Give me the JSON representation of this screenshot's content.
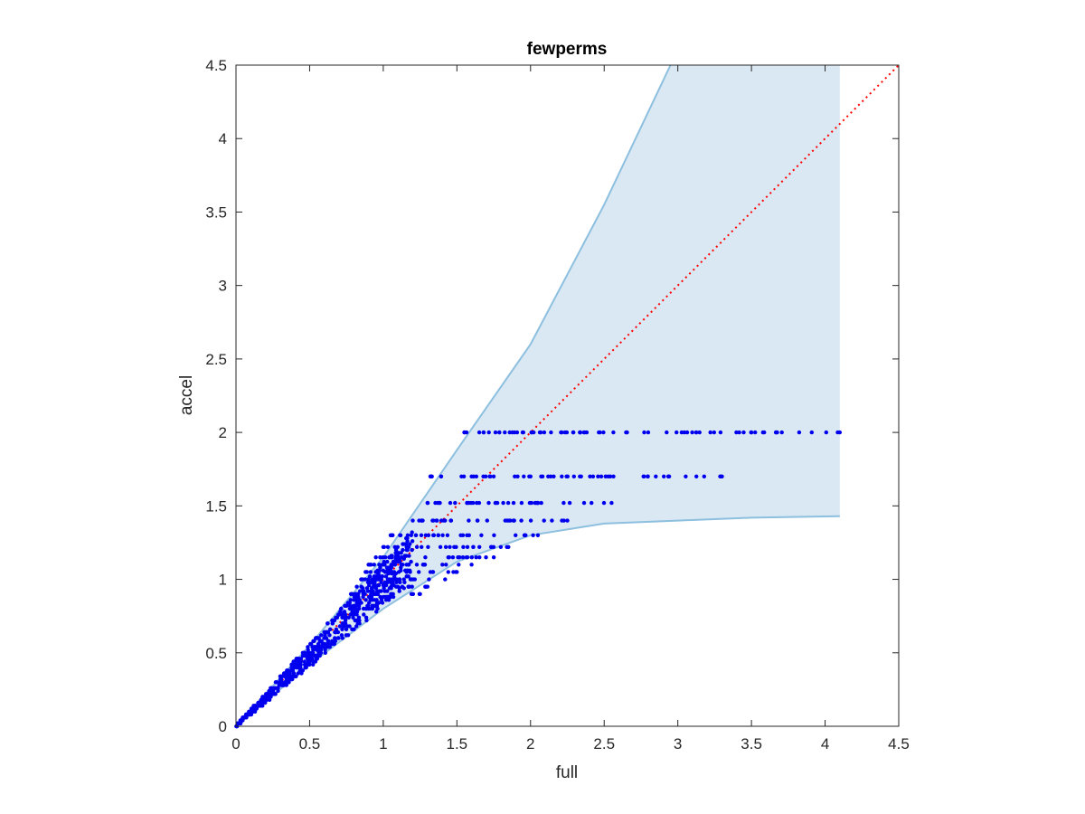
{
  "chart_data": {
    "type": "scatter",
    "title": "fewperms",
    "xlabel": "full",
    "ylabel": "accel",
    "xlim": [
      0,
      4.5
    ],
    "ylim": [
      0,
      4.5
    ],
    "xticks": [
      "0",
      "0.5",
      "1",
      "1.5",
      "2",
      "2.5",
      "3",
      "3.5",
      "4",
      "4.5"
    ],
    "yticks": [
      "0",
      "0.5",
      "1",
      "1.5",
      "2",
      "2.5",
      "3",
      "3.5",
      "4",
      "4.5"
    ],
    "grid": false,
    "colors": {
      "points": "#0000ee",
      "band_fill": "#d9e8f3",
      "band_edge": "#8dbfdf",
      "reference_line": "#ff0000",
      "axes": "#262626"
    },
    "reference_line": {
      "type": "y=x",
      "style": "dotted"
    },
    "band": {
      "upper": [
        [
          0,
          0
        ],
        [
          0.5,
          0.55
        ],
        [
          1,
          1.15
        ],
        [
          1.5,
          1.88
        ],
        [
          2,
          2.6
        ],
        [
          2.5,
          3.55
        ],
        [
          2.95,
          4.5
        ],
        [
          4.1,
          4.5
        ]
      ],
      "lower": [
        [
          0,
          0
        ],
        [
          0.5,
          0.42
        ],
        [
          1,
          0.8
        ],
        [
          1.5,
          1.12
        ],
        [
          2,
          1.3
        ],
        [
          2.5,
          1.38
        ],
        [
          3,
          1.4
        ],
        [
          3.5,
          1.42
        ],
        [
          4.1,
          1.43
        ]
      ]
    },
    "series": [
      {
        "levels": [
          {
            "y": 2.0,
            "x_min": 1.55,
            "x_max": 4.1
          },
          {
            "y": 1.7,
            "x_min": 1.32,
            "x_max": 3.3
          },
          {
            "y": 1.52,
            "x_min": 1.3,
            "x_max": 2.55
          },
          {
            "y": 1.4,
            "x_min": 1.2,
            "x_max": 2.25
          },
          {
            "y": 1.3,
            "x_min": 1.05,
            "x_max": 2.05
          },
          {
            "y": 1.22,
            "x_min": 1.0,
            "x_max": 1.85
          },
          {
            "y": 1.15,
            "x_min": 0.95,
            "x_max": 1.75
          },
          {
            "y": 1.1,
            "x_min": 0.9,
            "x_max": 1.6
          },
          {
            "y": 1.05,
            "x_min": 0.88,
            "x_max": 1.5
          },
          {
            "y": 1.0,
            "x_min": 0.85,
            "x_max": 1.42
          },
          {
            "y": 0.95,
            "x_min": 0.82,
            "x_max": 1.3
          },
          {
            "y": 0.9,
            "x_min": 0.78,
            "x_max": 1.25
          }
        ],
        "diagonal_cluster": {
          "x_range": [
            0,
            1.2
          ],
          "slope_range": [
            0.82,
            1.12
          ]
        }
      }
    ]
  }
}
